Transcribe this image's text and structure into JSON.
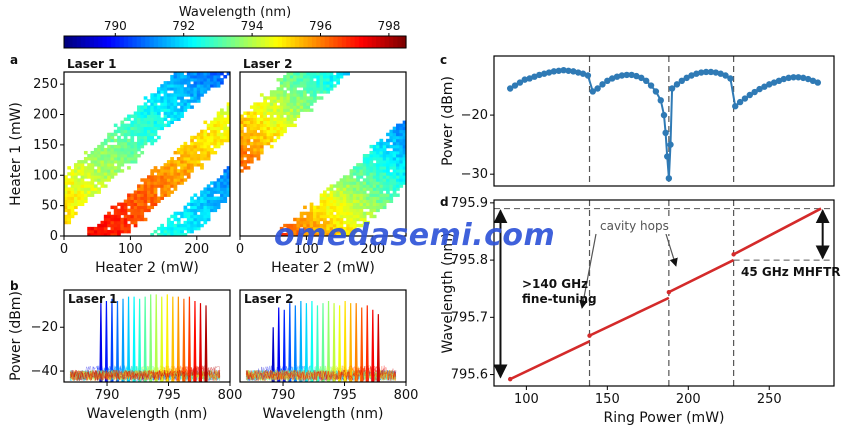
{
  "colorbar": {
    "title": "Wavelength (nm)",
    "ticks": [
      790,
      792,
      794,
      796,
      798
    ],
    "range": [
      788.5,
      798.5
    ],
    "colormap": "jet"
  },
  "watermark": "omedasemi.com",
  "chart_data": [
    {
      "panel": "a",
      "type": "heatmap",
      "title": "Laser 1",
      "xlabel": "Heater 2 (mW)",
      "ylabel": "Heater 1 (mW)",
      "xlim": [
        0,
        250
      ],
      "ylim": [
        0,
        270
      ],
      "xticks": [
        0,
        100,
        200
      ],
      "yticks": [
        0,
        50,
        100,
        150,
        200,
        250
      ],
      "description_bands": [
        {
          "offset": 60,
          "half_width": 40,
          "wl_start": 795.5,
          "wl_end": 790.5
        },
        {
          "offset": -60,
          "half_width": 30,
          "wl_start": 797.5,
          "wl_end": 794.0
        },
        {
          "offset": -160,
          "half_width": 28,
          "wl_start": 793.5,
          "wl_end": 790.0
        }
      ]
    },
    {
      "panel": "a",
      "type": "heatmap",
      "title": "Laser 2",
      "xlabel": "Heater 2 (mW)",
      "xlim": [
        0,
        250
      ],
      "ylim": [
        0,
        270
      ],
      "xticks": [
        0,
        100,
        200
      ],
      "yticks": [
        0,
        50,
        100,
        150,
        200,
        250
      ],
      "description_bands": [
        {
          "offset": 150,
          "half_width": 45,
          "wl_start": 798.0,
          "wl_end": 790.5
        },
        {
          "offset": -110,
          "half_width": 55,
          "wl_start": 797.5,
          "wl_end": 789.5
        }
      ]
    },
    {
      "panel": "b",
      "type": "line",
      "title": "Laser 1",
      "xlabel": "Wavelength (nm)",
      "ylabel": "Power (dBm)",
      "xlim": [
        786.5,
        800
      ],
      "ylim": [
        -45,
        -3
      ],
      "xticks": [
        790,
        795,
        800
      ],
      "yticks": [
        -20,
        -40
      ],
      "line_peaks_nm": [
        789.5,
        789.95,
        790.4,
        790.85,
        791.3,
        791.75,
        792.2,
        792.65,
        793.1,
        793.55,
        794.0,
        794.45,
        794.9,
        795.35,
        795.8,
        796.25,
        796.7,
        797.15,
        797.6,
        798.05
      ],
      "line_peaks_dbm": [
        -9,
        -8,
        -7,
        -8,
        -7,
        -6,
        -6,
        -7,
        -6,
        -5,
        -5,
        -6,
        -5,
        -6,
        -6,
        -7,
        -6,
        -8,
        -9,
        -10
      ],
      "noise_floor_dbm": -42
    },
    {
      "panel": "b",
      "type": "line",
      "title": "Laser 2",
      "xlabel": "Wavelength (nm)",
      "xlim": [
        786.5,
        800
      ],
      "ylim": [
        -45,
        -3
      ],
      "xticks": [
        790,
        795,
        800
      ],
      "line_peaks_nm": [
        789.2,
        789.65,
        790.1,
        790.55,
        791.0,
        791.45,
        791.9,
        792.35,
        792.8,
        793.25,
        793.7,
        794.15,
        794.6,
        795.05,
        795.5,
        795.95,
        796.4,
        796.85,
        797.3,
        797.75
      ],
      "line_peaks_dbm": [
        -20,
        -11,
        -12,
        -9,
        -10,
        -8,
        -9,
        -8,
        -10,
        -9,
        -8,
        -9,
        -10,
        -8,
        -9,
        -9,
        -11,
        -10,
        -12,
        -14
      ],
      "noise_floor_dbm": -42
    },
    {
      "panel": "c",
      "type": "scatter",
      "ylabel": "Power (dBm)",
      "xlim": [
        80,
        290
      ],
      "ylim": [
        -32,
        -10
      ],
      "yticks": [
        -20,
        -30
      ],
      "x": [
        90,
        93,
        96,
        99,
        102,
        105,
        108,
        111,
        114,
        117,
        120,
        123,
        126,
        129,
        132,
        135,
        138,
        141,
        144,
        147,
        150,
        153,
        156,
        159,
        162,
        165,
        168,
        171,
        174,
        177,
        180,
        183,
        185,
        186,
        187,
        188,
        189,
        190,
        193,
        196,
        199,
        202,
        205,
        208,
        211,
        214,
        217,
        220,
        223,
        226,
        229,
        232,
        235,
        238,
        241,
        244,
        247,
        250,
        253,
        256,
        259,
        262,
        265,
        268,
        271,
        274,
        277,
        280
      ],
      "y": [
        -15.5,
        -15,
        -14.5,
        -14,
        -13.8,
        -13.5,
        -13.2,
        -13,
        -12.8,
        -12.6,
        -12.5,
        -12.4,
        -12.5,
        -12.6,
        -12.8,
        -13,
        -13.3,
        -16,
        -15.5,
        -14.8,
        -14.2,
        -13.8,
        -13.5,
        -13.3,
        -13.2,
        -13.2,
        -13.4,
        -13.7,
        -14.2,
        -15,
        -16,
        -17.5,
        -20,
        -23,
        -27,
        -30.7,
        -25,
        -15.5,
        -14.8,
        -14.2,
        -13.7,
        -13.3,
        -13,
        -12.8,
        -12.7,
        -12.7,
        -12.8,
        -13,
        -13.3,
        -13.8,
        -18.5,
        -17.8,
        -17.2,
        -16.6,
        -16.1,
        -15.6,
        -15.2,
        -14.8,
        -14.5,
        -14.2,
        -13.9,
        -13.7,
        -13.6,
        -13.6,
        -13.7,
        -13.9,
        -14.2,
        -14.5
      ],
      "color": "#2f7ab5",
      "vlines": [
        139,
        188,
        228
      ]
    },
    {
      "panel": "d",
      "type": "line",
      "xlabel": "Ring Power (mW)",
      "ylabel": "Wavelength (nm)",
      "xlim": [
        80,
        290
      ],
      "ylim": [
        795.58,
        795.905
      ],
      "xticks": [
        100,
        150,
        200,
        250
      ],
      "yticks": [
        795.6,
        795.7,
        795.8,
        795.9
      ],
      "segments": [
        {
          "x": [
            90,
            139
          ],
          "y": [
            795.592,
            795.658
          ]
        },
        {
          "x": [
            139,
            188
          ],
          "y": [
            795.668,
            795.734
          ]
        },
        {
          "x": [
            188,
            228
          ],
          "y": [
            795.744,
            795.8
          ]
        },
        {
          "x": [
            228,
            282
          ],
          "y": [
            795.81,
            795.89
          ]
        }
      ],
      "color": "#d42a2a",
      "vlines": [
        139,
        188,
        228
      ],
      "annotations": {
        "cavity_hops": "cavity hops",
        "fine_tuning_line1": ">140 GHz",
        "fine_tuning_line2": "fine-tuning",
        "mhftr": "45 GHz MHFTR"
      }
    }
  ],
  "panel_letters": {
    "a": "a",
    "b": "b",
    "c": "c",
    "d": "d"
  }
}
